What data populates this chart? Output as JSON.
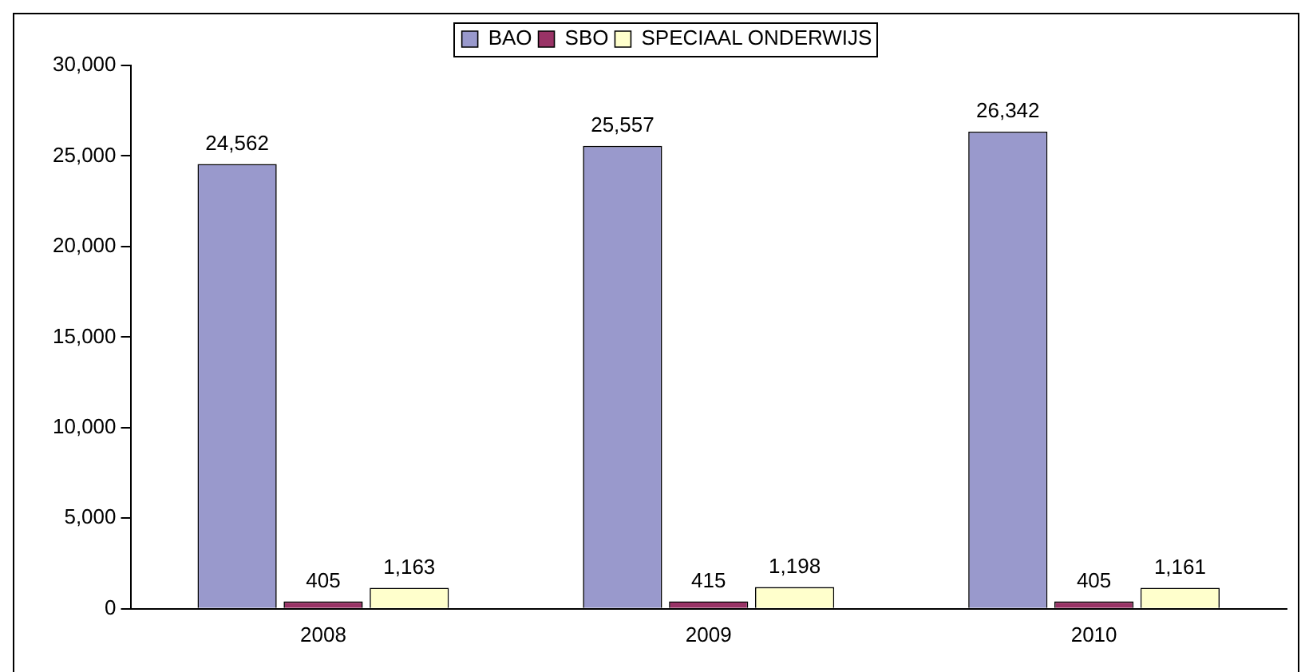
{
  "chart_data": {
    "type": "bar",
    "categories": [
      "2008",
      "2009",
      "2010"
    ],
    "series": [
      {
        "name": "BAO",
        "color": "#9999cc",
        "values": [
          24562,
          25557,
          26342
        ],
        "value_labels": [
          "24,562",
          "25,557",
          "26,342"
        ]
      },
      {
        "name": "SBO",
        "color": "#993366",
        "values": [
          405,
          415,
          405
        ],
        "value_labels": [
          "405",
          "415",
          "405"
        ]
      },
      {
        "name": "SPECIAAL ONDERWIJS",
        "color": "#ffffcc",
        "values": [
          1163,
          1198,
          1161
        ],
        "value_labels": [
          "1,163",
          "1,198",
          "1,161"
        ]
      }
    ],
    "ylim": [
      0,
      30000
    ],
    "yticks": [
      {
        "value": 0,
        "label": "0"
      },
      {
        "value": 5000,
        "label": "5,000"
      },
      {
        "value": 10000,
        "label": "10,000"
      },
      {
        "value": 15000,
        "label": "15,000"
      },
      {
        "value": 20000,
        "label": "20,000"
      },
      {
        "value": 25000,
        "label": "25,000"
      },
      {
        "value": 30000,
        "label": "30,000"
      }
    ],
    "grid": false,
    "legend": "top"
  }
}
